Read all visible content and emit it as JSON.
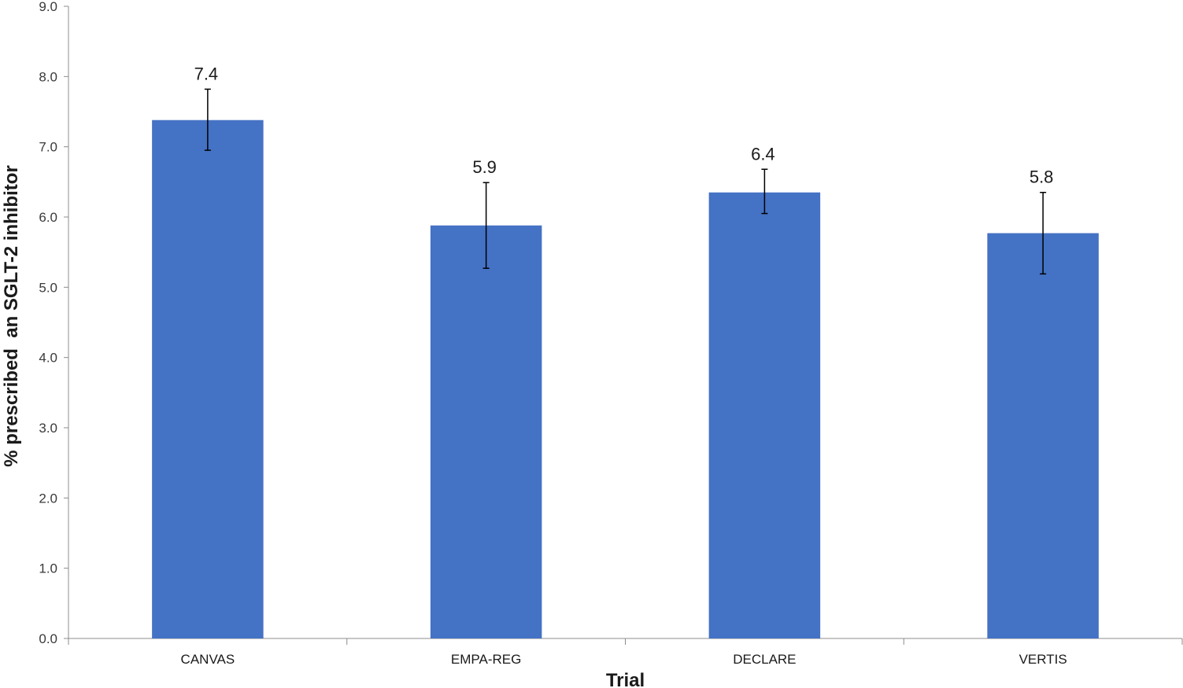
{
  "chart_data": {
    "type": "bar",
    "categories": [
      "CANVAS",
      "EMPA-REG",
      "DECLARE",
      "VERTIS"
    ],
    "values": [
      7.38,
      5.88,
      6.35,
      5.77
    ],
    "data_labels": [
      "7.4",
      "5.9",
      "6.4",
      "5.8"
    ],
    "error_bars": [
      {
        "low": 6.95,
        "high": 7.82
      },
      {
        "low": 5.27,
        "high": 6.49
      },
      {
        "low": 6.05,
        "high": 6.68
      },
      {
        "low": 5.19,
        "high": 6.35
      }
    ],
    "xlabel": "Trial",
    "ylabel": "% prescribed  an SGLT-2 inhibitor",
    "ylim": [
      0,
      9
    ],
    "yticks": [
      "0.0",
      "1.0",
      "2.0",
      "3.0",
      "4.0",
      "5.0",
      "6.0",
      "7.0",
      "8.0",
      "9.0"
    ],
    "grid": false,
    "legend": "none",
    "bar_color": "#4472C4"
  }
}
